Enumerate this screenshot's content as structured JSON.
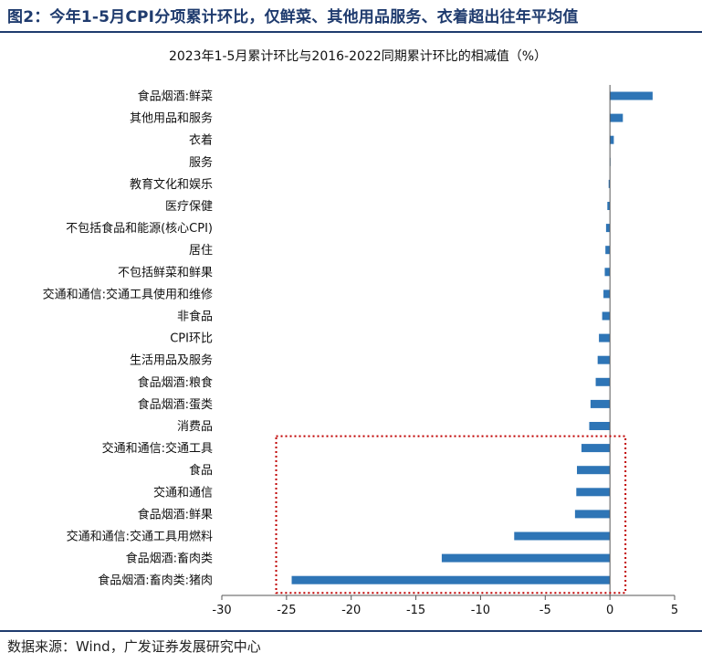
{
  "header": {
    "figure_title": "图2：今年1-5月CPI分项累计环比，仅鲜菜、其他用品服务、衣着超出往年平均值"
  },
  "footer": {
    "source": "数据来源：Wind，广发证券发展研究中心"
  },
  "colors": {
    "bar": "#2e75b6",
    "axis": "#555555",
    "highlight_box": "#c00000",
    "title_rule": "#1f3b6e"
  },
  "chart_data": {
    "type": "bar",
    "orientation": "horizontal",
    "title": "2023年1-5月累计环比与2016-2022同期累计环比的相减值（%）",
    "categories": [
      "食品烟酒:鲜菜",
      "其他用品和服务",
      "衣着",
      "服务",
      "教育文化和娱乐",
      "医疗保健",
      "不包括食品和能源(核心CPI)",
      "居住",
      "不包括鲜菜和鲜果",
      "交通和通信:交通工具使用和维修",
      "非食品",
      "CPI环比",
      "生活用品及服务",
      "食品烟酒:粮食",
      "食品烟酒:蛋类",
      "消费品",
      "交通和通信:交通工具",
      "食品",
      "交通和通信",
      "食品烟酒:鲜果",
      "交通和通信:交通工具用燃料",
      "食品烟酒:畜肉类",
      "食品烟酒:畜肉类:猪肉"
    ],
    "values": [
      3.3,
      1.0,
      0.3,
      0.0,
      -0.1,
      -0.2,
      -0.3,
      -0.35,
      -0.4,
      -0.5,
      -0.6,
      -0.85,
      -0.95,
      -1.1,
      -1.5,
      -1.6,
      -2.2,
      -2.55,
      -2.6,
      -2.7,
      -7.4,
      -13.0,
      -24.6
    ],
    "xlim": [
      -30,
      5
    ],
    "xticks": [
      -30,
      -25,
      -20,
      -15,
      -10,
      -5,
      0,
      5
    ],
    "xtick_labels": [
      "-30",
      "-25",
      "-20",
      "-15",
      "-10",
      "-5",
      "0",
      "5"
    ],
    "grid": false,
    "legend": "none",
    "highlight": {
      "style": "dotted red box",
      "categories_from": "交通和通信:交通工具",
      "categories_to": "食品烟酒:畜肉类:猪肉"
    }
  }
}
